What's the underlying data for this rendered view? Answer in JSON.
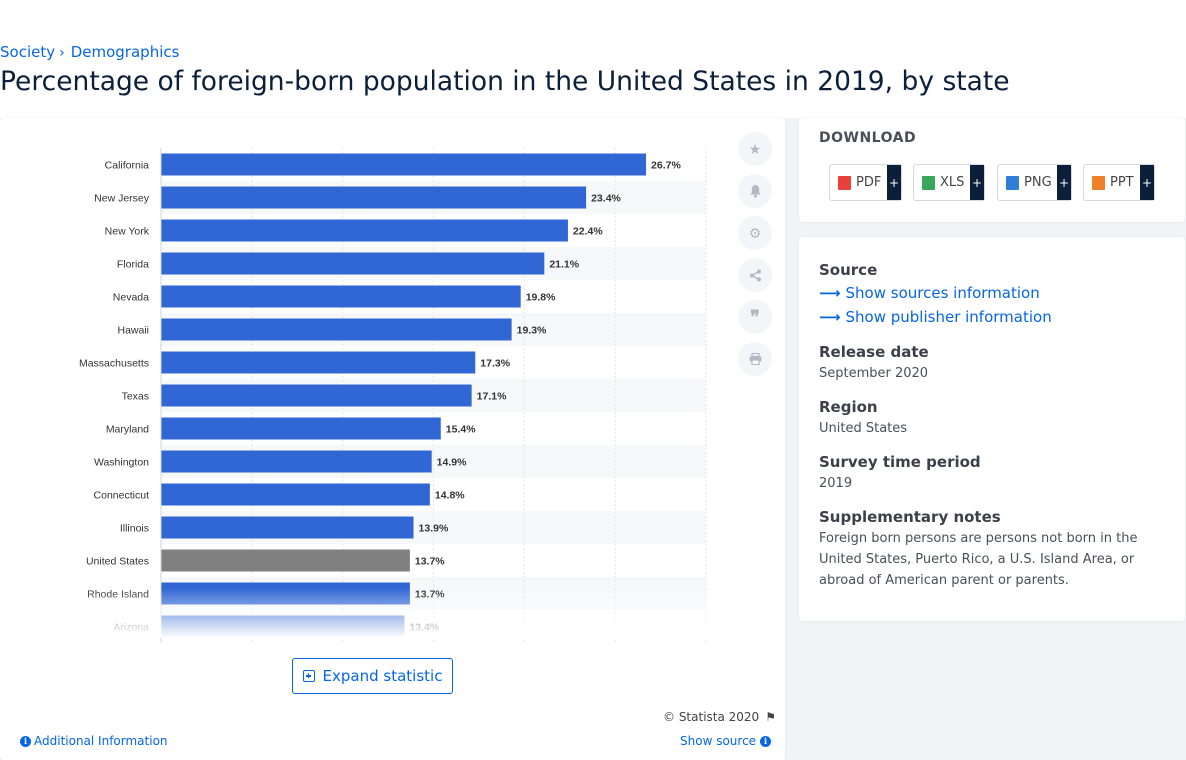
{
  "breadcrumb": {
    "items": [
      "Society",
      "Demographics"
    ],
    "separator": "›"
  },
  "page_title": "Percentage of foreign-born population in the United States in 2019, by state",
  "chart_tools": [
    "star-icon",
    "bell-icon",
    "gear-icon",
    "share-icon",
    "quote-icon",
    "print-icon"
  ],
  "expand_label": "Expand statistic",
  "copyright": "© Statista 2020",
  "additional_info_label": "Additional Information",
  "show_source_label": "Show source",
  "download": {
    "title": "DOWNLOAD",
    "buttons": [
      {
        "label": "PDF",
        "color": "#e8413c"
      },
      {
        "label": "XLS",
        "color": "#3aa657"
      },
      {
        "label": "PNG",
        "color": "#2f7fd8"
      },
      {
        "label": "PPT",
        "color": "#f07f2c"
      }
    ],
    "plus": "+"
  },
  "info": {
    "source_heading": "Source",
    "sources_link": "Show sources information",
    "publisher_link": "Show publisher information",
    "release_heading": "Release date",
    "release_value": "September 2020",
    "region_heading": "Region",
    "region_value": "United States",
    "period_heading": "Survey time period",
    "period_value": "2019",
    "notes_heading": "Supplementary notes",
    "notes_value": "Foreign born persons are persons not born in the United States, Puerto Rico, a U.S. Island Area, or abroad of American parent or parents."
  },
  "chart_data": {
    "type": "bar",
    "orientation": "horizontal",
    "categories": [
      "California",
      "New Jersey",
      "New York",
      "Florida",
      "Nevada",
      "Hawaii",
      "Massachusetts",
      "Texas",
      "Maryland",
      "Washington",
      "Connecticut",
      "Illinois",
      "United States",
      "Rhode Island",
      "Arizona"
    ],
    "values": [
      26.7,
      23.4,
      22.4,
      21.1,
      19.8,
      19.3,
      17.3,
      17.1,
      15.4,
      14.9,
      14.8,
      13.9,
      13.7,
      13.7,
      13.4
    ],
    "value_labels": [
      "26.7%",
      "23.4%",
      "22.4%",
      "21.1%",
      "19.8%",
      "19.3%",
      "17.3%",
      "17.1%",
      "15.4%",
      "14.9%",
      "14.8%",
      "13.9%",
      "13.7%",
      "13.7%",
      "13.4%"
    ],
    "unit": "%",
    "xlim": [
      0,
      30
    ],
    "grid": true,
    "colors": {
      "bar": "#3167d4",
      "highlight": "#808080"
    },
    "highlight_category": "United States"
  }
}
